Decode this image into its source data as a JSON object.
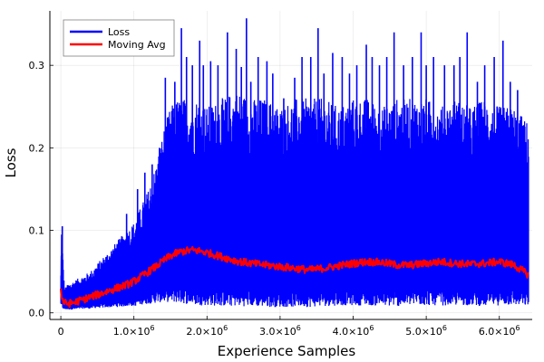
{
  "chart_data": {
    "type": "line",
    "xlabel": "Experience Samples",
    "ylabel": "Loss",
    "xlim": [
      -150000,
      6450000
    ],
    "ylim": [
      -0.008,
      0.366
    ],
    "grid": true,
    "legend_position": "top-left",
    "x_ticks": [
      {
        "value": 0,
        "label": "0"
      },
      {
        "value": 1000000,
        "mantissa": "1.0",
        "base": "×10",
        "exp": "6"
      },
      {
        "value": 2000000,
        "mantissa": "2.0",
        "base": "×10",
        "exp": "6"
      },
      {
        "value": 3000000,
        "mantissa": "3.0",
        "base": "×10",
        "exp": "6"
      },
      {
        "value": 4000000,
        "mantissa": "4.0",
        "base": "×10",
        "exp": "6"
      },
      {
        "value": 5000000,
        "mantissa": "5.0",
        "base": "×10",
        "exp": "6"
      },
      {
        "value": 6000000,
        "mantissa": "6.0",
        "base": "×10",
        "exp": "6"
      }
    ],
    "y_ticks": [
      {
        "value": 0.0,
        "label": "0.0"
      },
      {
        "value": 0.1,
        "label": "0.1"
      },
      {
        "value": 0.2,
        "label": "0.2"
      },
      {
        "value": 0.3,
        "label": "0.3"
      }
    ],
    "series": [
      {
        "name": "Loss",
        "color": "#0000ff",
        "x": [
          0,
          10000,
          50000,
          100000,
          200000,
          300000,
          400000,
          500000,
          600000,
          700000,
          800000,
          900000,
          1000000,
          1100000,
          1200000,
          1300000,
          1400000,
          1500000,
          1600000,
          1700000,
          1800000,
          1900000,
          2000000,
          2200000,
          2400000,
          2600000,
          2800000,
          3000000,
          3200000,
          3400000,
          3600000,
          3800000,
          4000000,
          4200000,
          4400000,
          4600000,
          4800000,
          5000000,
          5200000,
          5400000,
          5600000,
          5800000,
          6000000,
          6200000,
          6400000
        ],
        "upper": [
          0.05,
          0.105,
          0.03,
          0.035,
          0.04,
          0.045,
          0.05,
          0.06,
          0.07,
          0.08,
          0.09,
          0.1,
          0.11,
          0.13,
          0.15,
          0.18,
          0.22,
          0.25,
          0.26,
          0.26,
          0.26,
          0.26,
          0.25,
          0.26,
          0.27,
          0.26,
          0.26,
          0.25,
          0.26,
          0.26,
          0.26,
          0.25,
          0.26,
          0.26,
          0.25,
          0.26,
          0.26,
          0.26,
          0.25,
          0.26,
          0.25,
          0.26,
          0.25,
          0.25,
          0.23
        ],
        "lower": [
          0.01,
          0.005,
          0.004,
          0.004,
          0.004,
          0.005,
          0.005,
          0.006,
          0.006,
          0.007,
          0.007,
          0.008,
          0.008,
          0.01,
          0.011,
          0.012,
          0.013,
          0.013,
          0.012,
          0.011,
          0.01,
          0.009,
          0.009,
          0.008,
          0.008,
          0.008,
          0.007,
          0.007,
          0.007,
          0.007,
          0.008,
          0.009,
          0.009,
          0.009,
          0.008,
          0.008,
          0.009,
          0.009,
          0.009,
          0.009,
          0.009,
          0.008,
          0.009,
          0.009,
          0.008
        ],
        "spikes": [
          [
            20000,
            0.105
          ],
          [
            900000,
            0.12
          ],
          [
            1050000,
            0.15
          ],
          [
            1150000,
            0.17
          ],
          [
            1250000,
            0.18
          ],
          [
            1350000,
            0.2
          ],
          [
            1430000,
            0.285
          ],
          [
            1560000,
            0.28
          ],
          [
            1650000,
            0.345
          ],
          [
            1720000,
            0.31
          ],
          [
            1800000,
            0.3
          ],
          [
            1900000,
            0.33
          ],
          [
            1950000,
            0.3
          ],
          [
            2050000,
            0.305
          ],
          [
            2150000,
            0.3
          ],
          [
            2280000,
            0.34
          ],
          [
            2400000,
            0.32
          ],
          [
            2470000,
            0.298
          ],
          [
            2540000,
            0.357
          ],
          [
            2600000,
            0.28
          ],
          [
            2700000,
            0.31
          ],
          [
            2820000,
            0.305
          ],
          [
            2900000,
            0.29
          ],
          [
            3050000,
            0.26
          ],
          [
            3200000,
            0.285
          ],
          [
            3300000,
            0.31
          ],
          [
            3420000,
            0.31
          ],
          [
            3520000,
            0.345
          ],
          [
            3600000,
            0.29
          ],
          [
            3720000,
            0.315
          ],
          [
            3850000,
            0.31
          ],
          [
            3950000,
            0.29
          ],
          [
            4050000,
            0.3
          ],
          [
            4180000,
            0.325
          ],
          [
            4260000,
            0.31
          ],
          [
            4360000,
            0.3
          ],
          [
            4460000,
            0.31
          ],
          [
            4560000,
            0.34
          ],
          [
            4690000,
            0.3
          ],
          [
            4810000,
            0.31
          ],
          [
            4930000,
            0.34
          ],
          [
            5000000,
            0.3
          ],
          [
            5100000,
            0.31
          ],
          [
            5250000,
            0.3
          ],
          [
            5380000,
            0.3
          ],
          [
            5460000,
            0.31
          ],
          [
            5560000,
            0.34
          ],
          [
            5700000,
            0.28
          ],
          [
            5800000,
            0.3
          ],
          [
            5930000,
            0.31
          ],
          [
            6050000,
            0.33
          ],
          [
            6150000,
            0.28
          ],
          [
            6250000,
            0.27
          ],
          [
            6340000,
            0.225
          ]
        ]
      },
      {
        "name": "Moving Avg",
        "color": "#ff0000",
        "x": [
          0,
          10000,
          50000,
          100000,
          200000,
          300000,
          400000,
          500000,
          600000,
          700000,
          800000,
          900000,
          1000000,
          1100000,
          1200000,
          1300000,
          1400000,
          1500000,
          1600000,
          1700000,
          1800000,
          1900000,
          2000000,
          2200000,
          2400000,
          2600000,
          2800000,
          3000000,
          3200000,
          3400000,
          3600000,
          3800000,
          4000000,
          4200000,
          4400000,
          4600000,
          4800000,
          5000000,
          5200000,
          5400000,
          5600000,
          5800000,
          6000000,
          6200000,
          6400000
        ],
        "values": [
          0.03,
          0.018,
          0.012,
          0.011,
          0.013,
          0.016,
          0.019,
          0.022,
          0.025,
          0.028,
          0.031,
          0.034,
          0.038,
          0.044,
          0.05,
          0.056,
          0.063,
          0.069,
          0.073,
          0.075,
          0.076,
          0.075,
          0.073,
          0.068,
          0.063,
          0.06,
          0.058,
          0.056,
          0.054,
          0.052,
          0.054,
          0.057,
          0.06,
          0.062,
          0.061,
          0.058,
          0.058,
          0.06,
          0.062,
          0.06,
          0.059,
          0.06,
          0.062,
          0.058,
          0.046
        ]
      }
    ]
  }
}
